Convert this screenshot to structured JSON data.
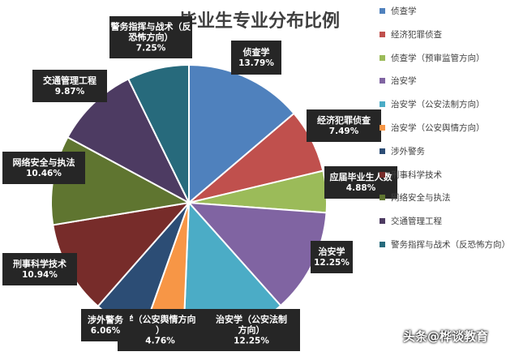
{
  "chart_data": {
    "type": "pie",
    "title": "毕业生专业分布比例",
    "slices": [
      {
        "name": "侦查学",
        "value": 13.79,
        "color": "#4f81bd",
        "label": "侦查学",
        "pct": "13.79%"
      },
      {
        "name": "经济犯罪侦查",
        "value": 7.49,
        "color": "#c0504d",
        "label": "经济犯罪侦查",
        "pct": "7.49%"
      },
      {
        "name": "侦查学（预审监管方向）",
        "value": 4.88,
        "color": "#9bbb59",
        "label": "应届毕业生人数",
        "pct": "4.88%"
      },
      {
        "name": "治安学",
        "value": 12.25,
        "color": "#8064a2",
        "label": "治安学",
        "pct": "12.25%"
      },
      {
        "name": "治安学（公安法制方向）",
        "value": 12.25,
        "color": "#4bacc6",
        "label": "治安学（公安法制方向）",
        "pct": "12.25%"
      },
      {
        "name": "治安学（公安舆情方向）",
        "value": 4.76,
        "color": "#f79646",
        "label": "学（公安舆情方向）",
        "pct": "4.76%"
      },
      {
        "name": "涉外警务",
        "value": 6.06,
        "color": "#2c4d75",
        "label": "涉外警务",
        "pct": "6.06%"
      },
      {
        "name": "刑事科学技术",
        "value": 10.94,
        "color": "#772c2a",
        "label": "刑事科学技术",
        "pct": "10.94%"
      },
      {
        "name": "网络安全与执法",
        "value": 10.46,
        "color": "#5f7530",
        "label": "网络安全与执法",
        "pct": "10.46%"
      },
      {
        "name": "交通管理工程",
        "value": 9.87,
        "color": "#4d3b62",
        "label": "交通管理工程",
        "pct": "9.87%"
      },
      {
        "name": "警务指挥与战术（反恐怖方向）",
        "value": 7.25,
        "color": "#276a7c",
        "label": "警务指挥与战术（反恐怖方向）",
        "pct": "7.25%"
      }
    ],
    "legend_position": "right"
  },
  "watermark": "头条@桦谈教育"
}
